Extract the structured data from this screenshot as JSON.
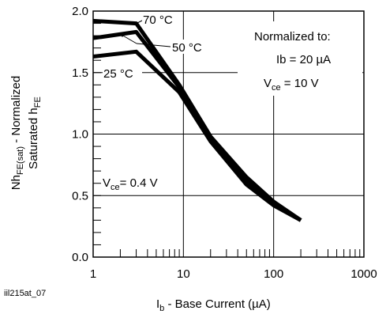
{
  "chart_data": {
    "type": "line",
    "x_scale": "log",
    "xlim": [
      1,
      1000
    ],
    "ylim": [
      0,
      2.0
    ],
    "grid": true,
    "x_ticks": [
      {
        "value": 1,
        "label": "1"
      },
      {
        "value": 10,
        "label": "10"
      },
      {
        "value": 100,
        "label": "100"
      },
      {
        "value": 1000,
        "label": "1000"
      }
    ],
    "y_ticks": [
      {
        "value": 0,
        "label": "0.0"
      },
      {
        "value": 0.5,
        "label": "0.5"
      },
      {
        "value": 1.0,
        "label": "1.0"
      },
      {
        "value": 1.5,
        "label": "1.5"
      },
      {
        "value": 2.0,
        "label": "2.0"
      }
    ],
    "xlabel": {
      "main": "I",
      "sub": "b",
      "rest": " - Base Current (µA)"
    },
    "ylabel": {
      "line1": {
        "a": "Nh",
        "sub": "FE(sat)",
        "b": " - Normalized"
      },
      "line2": {
        "a": "Saturated h",
        "sub": "FE"
      }
    },
    "figure_id": "iil215at_07",
    "annotations": {
      "normalized_to": "Normalized to:",
      "ib": "Ib = 20 µA",
      "vce_norm": {
        "a": "V",
        "sub": "ce",
        "b": " = 10 V"
      },
      "vce_cond": {
        "a": "V",
        "sub": "ce",
        "b": "= 0.4 V"
      }
    },
    "series": [
      {
        "name": "70 °C",
        "x": [
          1,
          3,
          9,
          20,
          50,
          100,
          200
        ],
        "y": [
          1.92,
          1.9,
          1.4,
          0.98,
          0.65,
          0.45,
          0.3
        ]
      },
      {
        "name": "50 °C",
        "x": [
          1,
          3,
          9,
          20,
          50,
          100,
          200
        ],
        "y": [
          1.78,
          1.83,
          1.38,
          0.97,
          0.63,
          0.44,
          0.3
        ]
      },
      {
        "name": "25 °C",
        "x": [
          1,
          3,
          9,
          20,
          50,
          100,
          200
        ],
        "y": [
          1.63,
          1.67,
          1.34,
          0.94,
          0.59,
          0.42,
          0.3
        ]
      }
    ]
  }
}
